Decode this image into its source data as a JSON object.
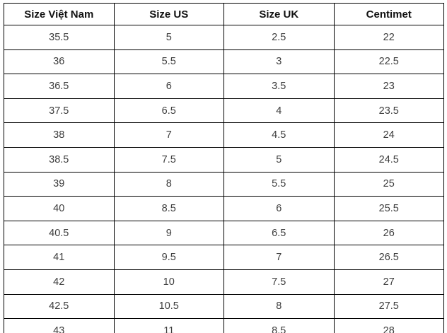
{
  "chart_data": {
    "type": "table",
    "columns": [
      "Size Việt Nam",
      "Size US",
      "Size UK",
      "Centimet"
    ],
    "rows": [
      [
        "35.5",
        "5",
        "2.5",
        "22"
      ],
      [
        "36",
        "5.5",
        "3",
        "22.5"
      ],
      [
        "36.5",
        "6",
        "3.5",
        "23"
      ],
      [
        "37.5",
        "6.5",
        "4",
        "23.5"
      ],
      [
        "38",
        "7",
        "4.5",
        "24"
      ],
      [
        "38.5",
        "7.5",
        "5",
        "24.5"
      ],
      [
        "39",
        "8",
        "5.5",
        "25"
      ],
      [
        "40",
        "8.5",
        "6",
        "25.5"
      ],
      [
        "40.5",
        "9",
        "6.5",
        "26"
      ],
      [
        "41",
        "9.5",
        "7",
        "26.5"
      ],
      [
        "42",
        "10",
        "7.5",
        "27"
      ],
      [
        "42.5",
        "10.5",
        "8",
        "27.5"
      ],
      [
        "43",
        "11",
        "8.5",
        "28"
      ]
    ]
  },
  "colors": {
    "border": "#000000",
    "header_text": "#111111",
    "body_text": "#3d3d3d",
    "background": "#ffffff"
  }
}
